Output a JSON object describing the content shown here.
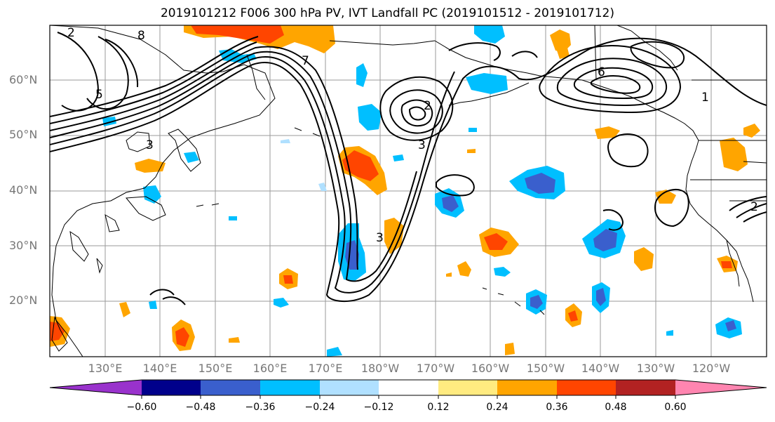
{
  "title": "2019101212 F006 300 hPa PV, IVT Landfall PC (2019101512 - 2019101712)",
  "map": {
    "lat_labels": [
      "60°N",
      "50°N",
      "40°N",
      "30°N",
      "20°N"
    ],
    "lon_labels": [
      "130°E",
      "140°E",
      "150°E",
      "160°E",
      "170°E",
      "180°W",
      "170°W",
      "160°W",
      "150°W",
      "140°W",
      "130°W",
      "120°W"
    ],
    "contour_labels": [
      "2",
      "8",
      "5",
      "7",
      "3",
      "1",
      "6",
      "2",
      "3",
      "2",
      "3"
    ],
    "filled_field_colors": {
      "strong_positive": "#ff4500",
      "positive": "#ffa500",
      "weak_positive": "#ffeb80",
      "weak_negative": "#b0e0ff",
      "negative": "#00bfff",
      "strong_negative": "#3a5fcd"
    }
  },
  "colorbar": {
    "colors": [
      "#9932cc",
      "#00008b",
      "#3a5fcd",
      "#00bfff",
      "#b0e0ff",
      "#ffffff",
      "#ffeb80",
      "#ffa500",
      "#ff4500",
      "#b22222",
      "#ff85b0"
    ],
    "tick_labels": [
      "−0.60",
      "−0.48",
      "−0.36",
      "−0.24",
      "−0.12",
      "0.12",
      "0.24",
      "0.36",
      "0.48",
      "0.60"
    ]
  }
}
